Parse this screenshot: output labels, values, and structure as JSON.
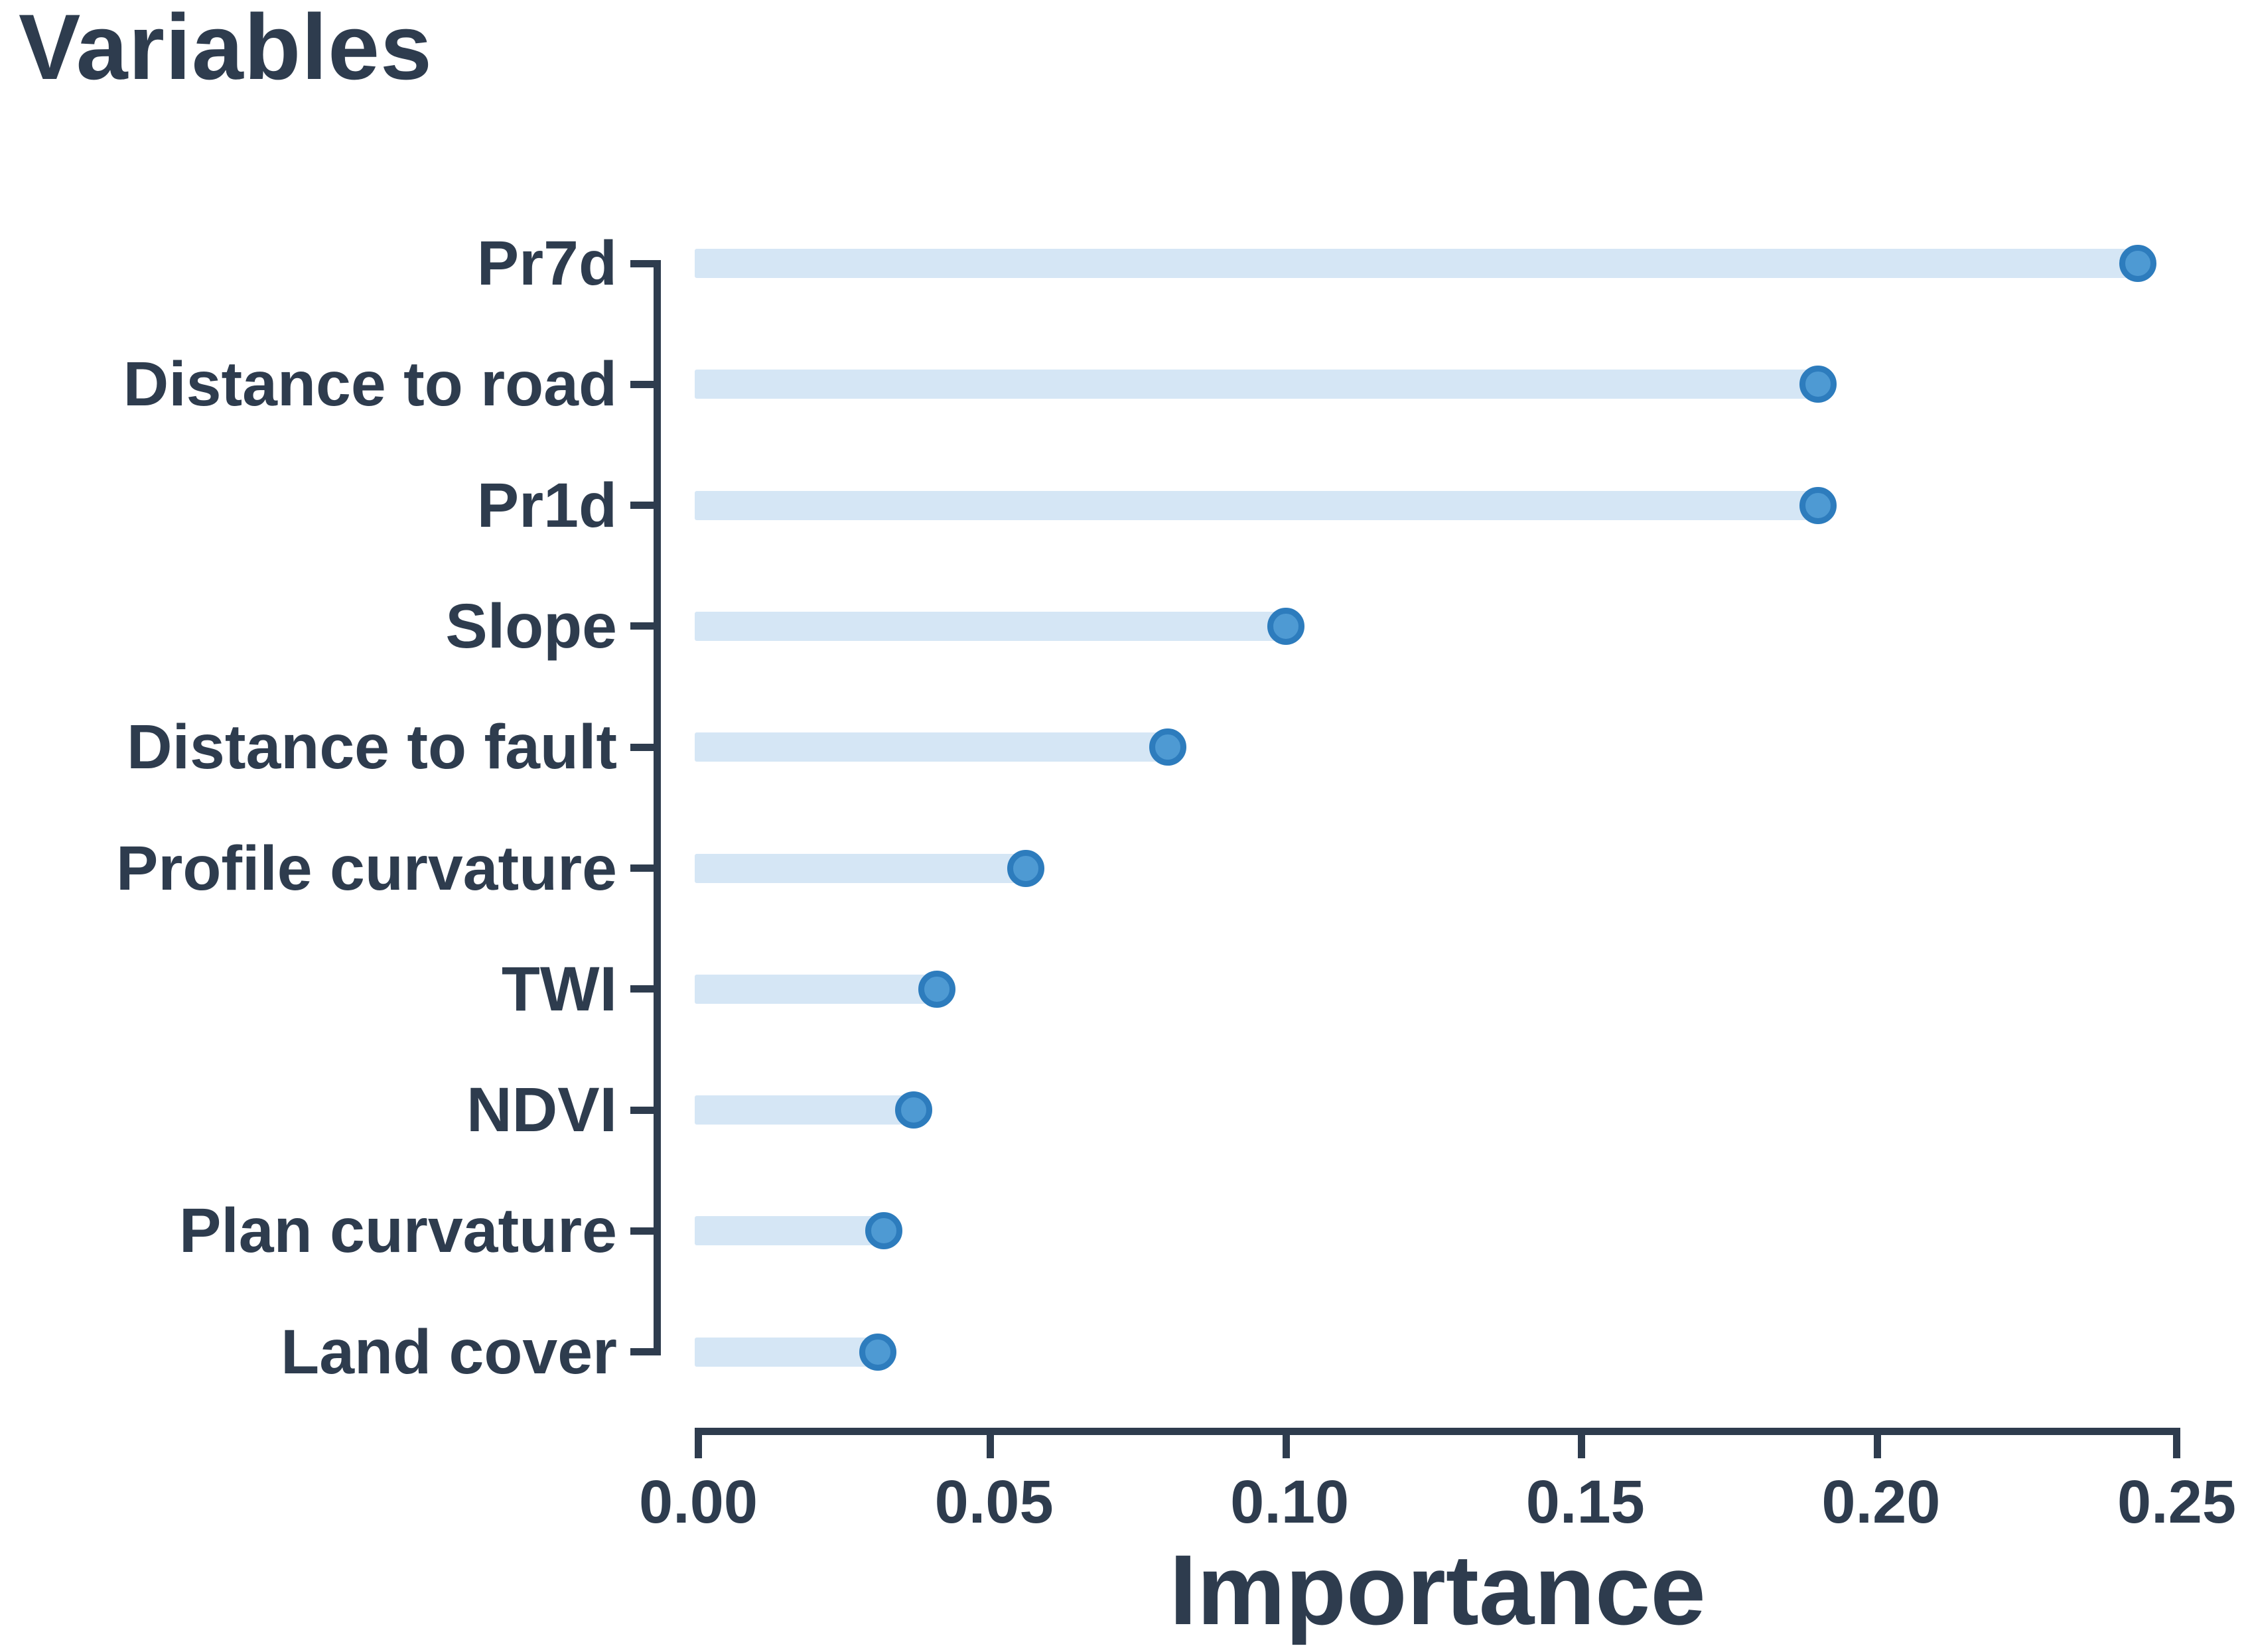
{
  "chart_data": {
    "type": "bar",
    "variant": "lollipop",
    "orientation": "horizontal",
    "title": "Variables",
    "xlabel": "Importance",
    "ylabel": "",
    "categories": [
      "Pr7d",
      "Distance to road",
      "Pr1d",
      "Slope",
      "Distance to fault",
      "Profile curvature",
      "TWI",
      "NDVI",
      "Plan curvature",
      "Land cover"
    ],
    "values": [
      0.244,
      0.19,
      0.19,
      0.1,
      0.08,
      0.056,
      0.041,
      0.037,
      0.032,
      0.031
    ],
    "xlim": [
      0,
      0.25
    ],
    "xticks": [
      0.0,
      0.05,
      0.1,
      0.15,
      0.2,
      0.25
    ],
    "xtick_labels": [
      "0.00",
      "0.05",
      "0.10",
      "0.15",
      "0.20",
      "0.25"
    ],
    "grid": false,
    "legend": null,
    "colors": {
      "background": "#ffffff",
      "text": "#2e3c4e",
      "axis": "#2e3c4e",
      "bar_fill": "#d5e6f5",
      "dot_fill": "#4e9ad3",
      "dot_border": "#2d7cbd"
    }
  }
}
